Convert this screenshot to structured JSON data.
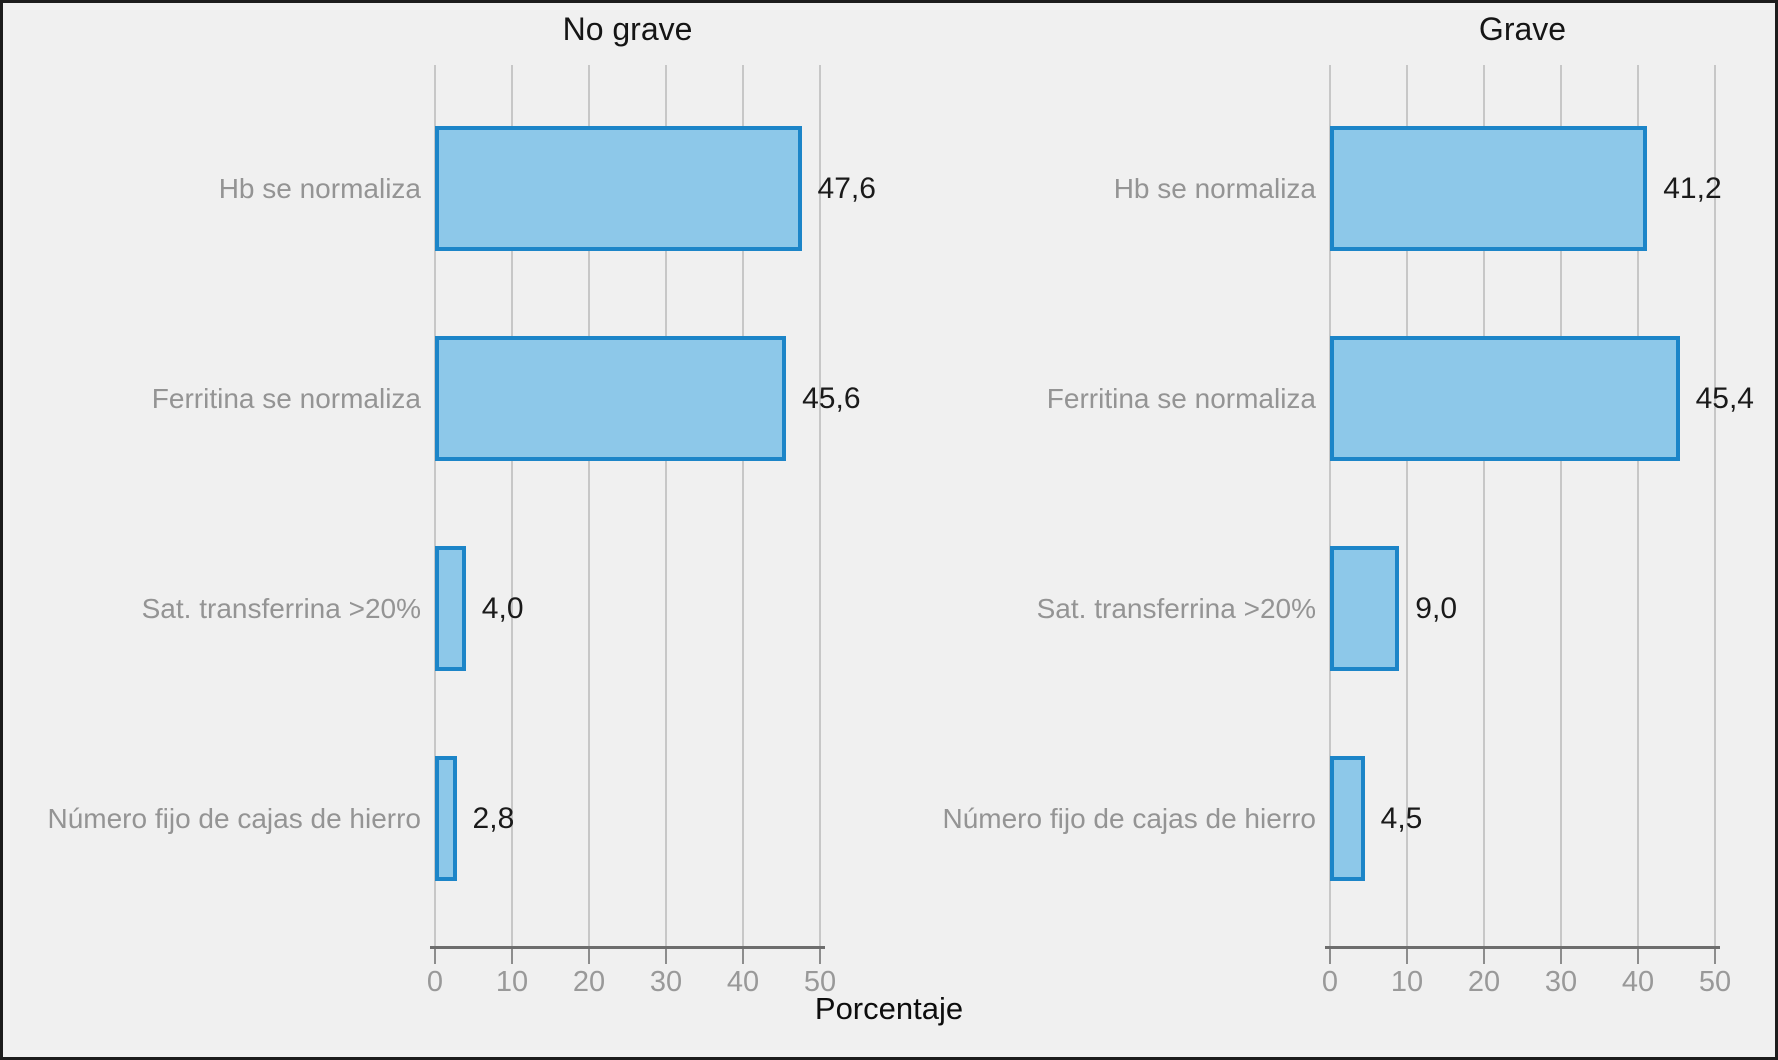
{
  "figure": {
    "xlabel": "Porcentaje",
    "background": "#f0f0f0",
    "frame_color": "#1c1c1c",
    "bar_fill": "#8dc8e9",
    "bar_border": "#1c85c8",
    "gridline_color": "#c7c7c7",
    "axis_color": "#6d6d6d",
    "category_text_color": "#949494",
    "value_text_color": "#1a1a1a"
  },
  "chart_data": [
    {
      "type": "bar",
      "orientation": "horizontal",
      "title": "No grave",
      "categories": [
        "Hb se normaliza",
        "Ferritina se normaliza",
        "Sat. transferrina >20%",
        "Número fijo de cajas de hierro"
      ],
      "values": [
        47.6,
        45.6,
        4.0,
        2.8
      ],
      "value_labels": [
        "47,6",
        "45,6",
        "4,0",
        "2,8"
      ],
      "xlabel": "Porcentaje",
      "xlim": [
        0,
        50
      ],
      "xticks": [
        0,
        10,
        20,
        30,
        40,
        50
      ],
      "grid": "vertical",
      "legend": "none"
    },
    {
      "type": "bar",
      "orientation": "horizontal",
      "title": "Grave",
      "categories": [
        "Hb se normaliza",
        "Ferritina se normaliza",
        "Sat. transferrina >20%",
        "Número fijo de cajas de hierro"
      ],
      "values": [
        41.2,
        45.4,
        9.0,
        4.5
      ],
      "value_labels": [
        "41,2",
        "45,4",
        "9,0",
        "4,5"
      ],
      "xlabel": "Porcentaje",
      "xlim": [
        0,
        50
      ],
      "xticks": [
        0,
        10,
        20,
        30,
        40,
        50
      ],
      "grid": "vertical",
      "legend": "none"
    }
  ]
}
